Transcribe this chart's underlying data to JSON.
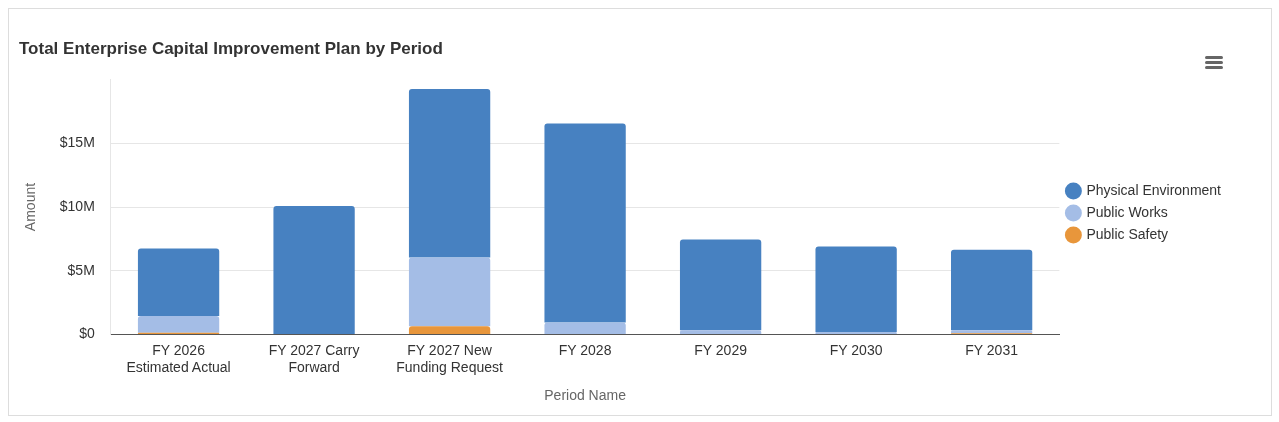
{
  "chart_data": {
    "type": "bar",
    "title": "Total Enterprise Capital Improvement Plan by Period",
    "xlabel": "Period Name",
    "ylabel": "Amount",
    "categories": [
      "FY 2026 Estimated Actual",
      "FY 2027 Carry Forward",
      "FY 2027 New Funding Request",
      "FY 2028",
      "FY 2029",
      "FY 2030",
      "FY 2031"
    ],
    "stacked": true,
    "series": [
      {
        "name": "Public Safety",
        "color": "#e8963b",
        "values": [
          0.15,
          0,
          0.65,
          0,
          0,
          0,
          0.1
        ]
      },
      {
        "name": "Public Works",
        "color": "#a4bde6",
        "values": [
          1.3,
          0,
          5.4,
          0.95,
          0.35,
          0.2,
          0.25
        ]
      },
      {
        "name": "Physical Environment",
        "color": "#4781c1",
        "values": [
          5.3,
          10.07,
          13.2,
          15.6,
          7.1,
          6.7,
          6.3
        ]
      }
    ],
    "ylim": [
      0,
      20
    ],
    "yticks": [
      {
        "value": 0,
        "label": "$0"
      },
      {
        "value": 5,
        "label": "$5M"
      },
      {
        "value": 10,
        "label": "$10M"
      },
      {
        "value": 15,
        "label": "$15M"
      }
    ],
    "grid": "y",
    "legend": "right"
  }
}
